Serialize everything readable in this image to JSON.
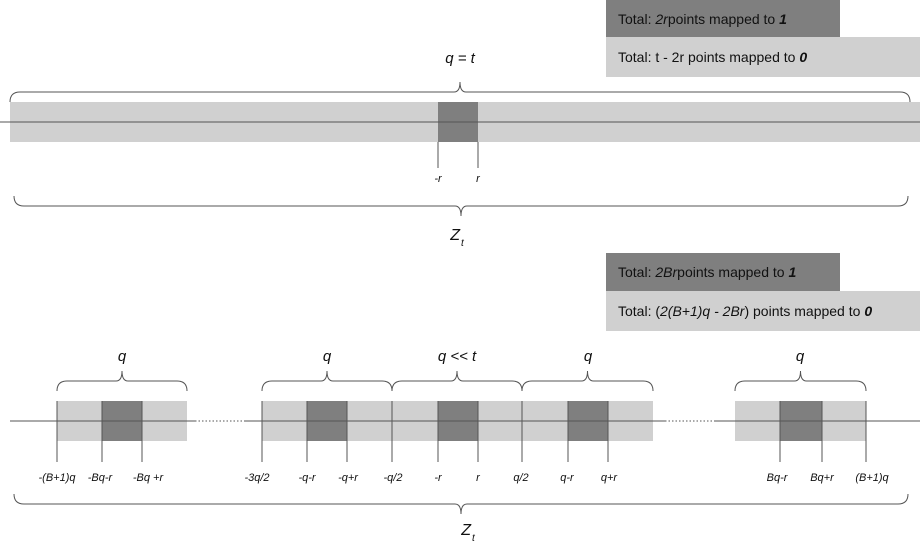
{
  "legend_top": {
    "dark": {
      "prefix": "Total: ",
      "em": "2r",
      "middle": " points mapped to ",
      "value": "1"
    },
    "light": {
      "prefix": "Total: t - 2r points mapped to ",
      "value": "0"
    }
  },
  "legend_bottom": {
    "dark": {
      "prefix": "Total: ",
      "em": "2Br",
      "middle": " points mapped to ",
      "value": "1"
    },
    "light": {
      "prefix": "Total: (",
      "em": "2(B+1)q - 2Br",
      "middle": ") points mapped to ",
      "value": "0"
    }
  },
  "top": {
    "brace_label": "q = t",
    "bottom_label_main": "Z",
    "bottom_label_sub": "t",
    "ticks": [
      "-r",
      "r"
    ]
  },
  "bottom": {
    "group_labels": [
      "q",
      "q",
      "q << t",
      "q",
      "q"
    ],
    "bottom_label_main": "Z",
    "bottom_label_sub": "t",
    "ticks": [
      "-(B+1)q",
      "-Bq-r",
      "-Bq +r",
      "-3q/2",
      "-q-r",
      "-q+r",
      "-q/2",
      "-r",
      "r",
      "q/2",
      "q-r",
      "q+r",
      "Bq-r",
      "Bq+r",
      "(B+1)q"
    ]
  },
  "colors": {
    "light": "#d0d0d0",
    "dark": "#7f7f7f",
    "line": "#555555"
  }
}
